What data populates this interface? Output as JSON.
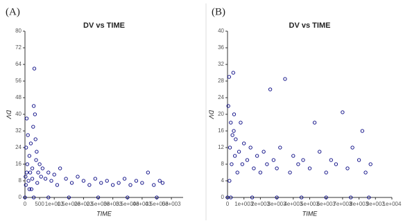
{
  "chart_data": [
    {
      "type": "scatter",
      "label": "(A)",
      "title": "DV vs TIME",
      "x_label": "TIME",
      "y_label": "DV",
      "color": "#000080",
      "xlim": [
        0,
        5400
      ],
      "ylim": [
        0,
        80
      ],
      "xticks": [
        0,
        500,
        {
          "value": 1000,
          "label": "1e+003"
        },
        {
          "value": 1500,
          "label": "1.5e+003"
        },
        {
          "value": 2000,
          "label": "2e+003"
        },
        {
          "value": 2500,
          "label": "2.5e+003"
        },
        {
          "value": 3000,
          "label": "3e+003"
        },
        {
          "value": 3500,
          "label": "3.5e+003"
        },
        {
          "value": 4000,
          "label": "4e+003"
        },
        {
          "value": 4500,
          "label": "4.5e+003"
        },
        {
          "value": 5000,
          "label": "5e+003"
        }
      ],
      "yticks": [
        0,
        8,
        16,
        24,
        32,
        40,
        48,
        56,
        64,
        72,
        80
      ],
      "x": [
        0,
        20,
        40,
        60,
        80,
        100,
        120,
        150,
        180,
        200,
        220,
        250,
        280,
        300,
        320,
        340,
        360,
        380,
        400,
        450,
        500,
        550,
        600,
        700,
        800,
        900,
        1000,
        1100,
        1200,
        1400,
        1600,
        1800,
        2000,
        2200,
        2400,
        2600,
        2800,
        3000,
        3200,
        3400,
        3600,
        3800,
        4000,
        4200,
        4400,
        4600,
        4700,
        300,
        800,
        1500,
        2500,
        3500,
        4500,
        30,
        60,
        150,
        250,
        420
      ],
      "values": [
        0,
        10,
        24,
        38,
        16,
        30,
        8,
        20,
        12,
        26,
        4,
        14,
        34,
        44,
        62,
        40,
        28,
        18,
        22,
        12,
        16,
        10,
        14,
        9,
        12,
        8,
        11,
        6,
        14,
        9,
        7,
        10,
        8,
        6,
        9,
        7,
        8,
        6,
        7,
        9,
        6,
        8,
        7,
        12,
        6,
        8,
        7,
        0,
        0,
        0,
        0,
        0,
        0,
        6,
        12,
        4,
        9,
        7
      ]
    },
    {
      "type": "scatter",
      "label": "(B)",
      "title": "DV vs TIME",
      "x_label": "TIME",
      "y_label": "DV",
      "color": "#000080",
      "xlim": [
        0,
        10000
      ],
      "ylim": [
        0,
        40
      ],
      "xticks": [
        0,
        {
          "value": 1000,
          "label": "1e+003"
        },
        {
          "value": 2000,
          "label": "2e+003"
        },
        {
          "value": 3000,
          "label": "3e+003"
        },
        {
          "value": 4000,
          "label": "4e+003"
        },
        {
          "value": 5000,
          "label": "5e+003"
        },
        {
          "value": 6000,
          "label": "6e+003"
        },
        {
          "value": 7000,
          "label": "7e+003"
        },
        {
          "value": 8000,
          "label": "8e+003"
        },
        {
          "value": 9000,
          "label": "9e+003"
        },
        {
          "value": 10000,
          "label": "1e+004"
        }
      ],
      "yticks": [
        0,
        4,
        8,
        12,
        16,
        20,
        24,
        28,
        32,
        36,
        40
      ],
      "x": [
        0,
        50,
        100,
        150,
        200,
        250,
        300,
        350,
        400,
        450,
        500,
        600,
        700,
        800,
        900,
        1000,
        1200,
        1400,
        1600,
        1800,
        2000,
        2200,
        2400,
        2600,
        2800,
        3000,
        3200,
        3500,
        3800,
        4000,
        4300,
        4600,
        5000,
        5300,
        5600,
        6000,
        6300,
        6600,
        7000,
        7300,
        7600,
        8000,
        8200,
        8400,
        8700,
        200,
        1500,
        3000,
        4500,
        6000,
        7500,
        8600,
        120,
        380
      ],
      "values": [
        0,
        22,
        29,
        12,
        18,
        8,
        15,
        30,
        20,
        10,
        14,
        6,
        11,
        18,
        8,
        13,
        9,
        12,
        7,
        10,
        6,
        11,
        8,
        26,
        9,
        7,
        12,
        28.5,
        6,
        10,
        8,
        9,
        7,
        18,
        11,
        6,
        9,
        8,
        20.5,
        7,
        12,
        9,
        16,
        6,
        8,
        0,
        0,
        0,
        0,
        0,
        0,
        0,
        4,
        16
      ]
    }
  ]
}
